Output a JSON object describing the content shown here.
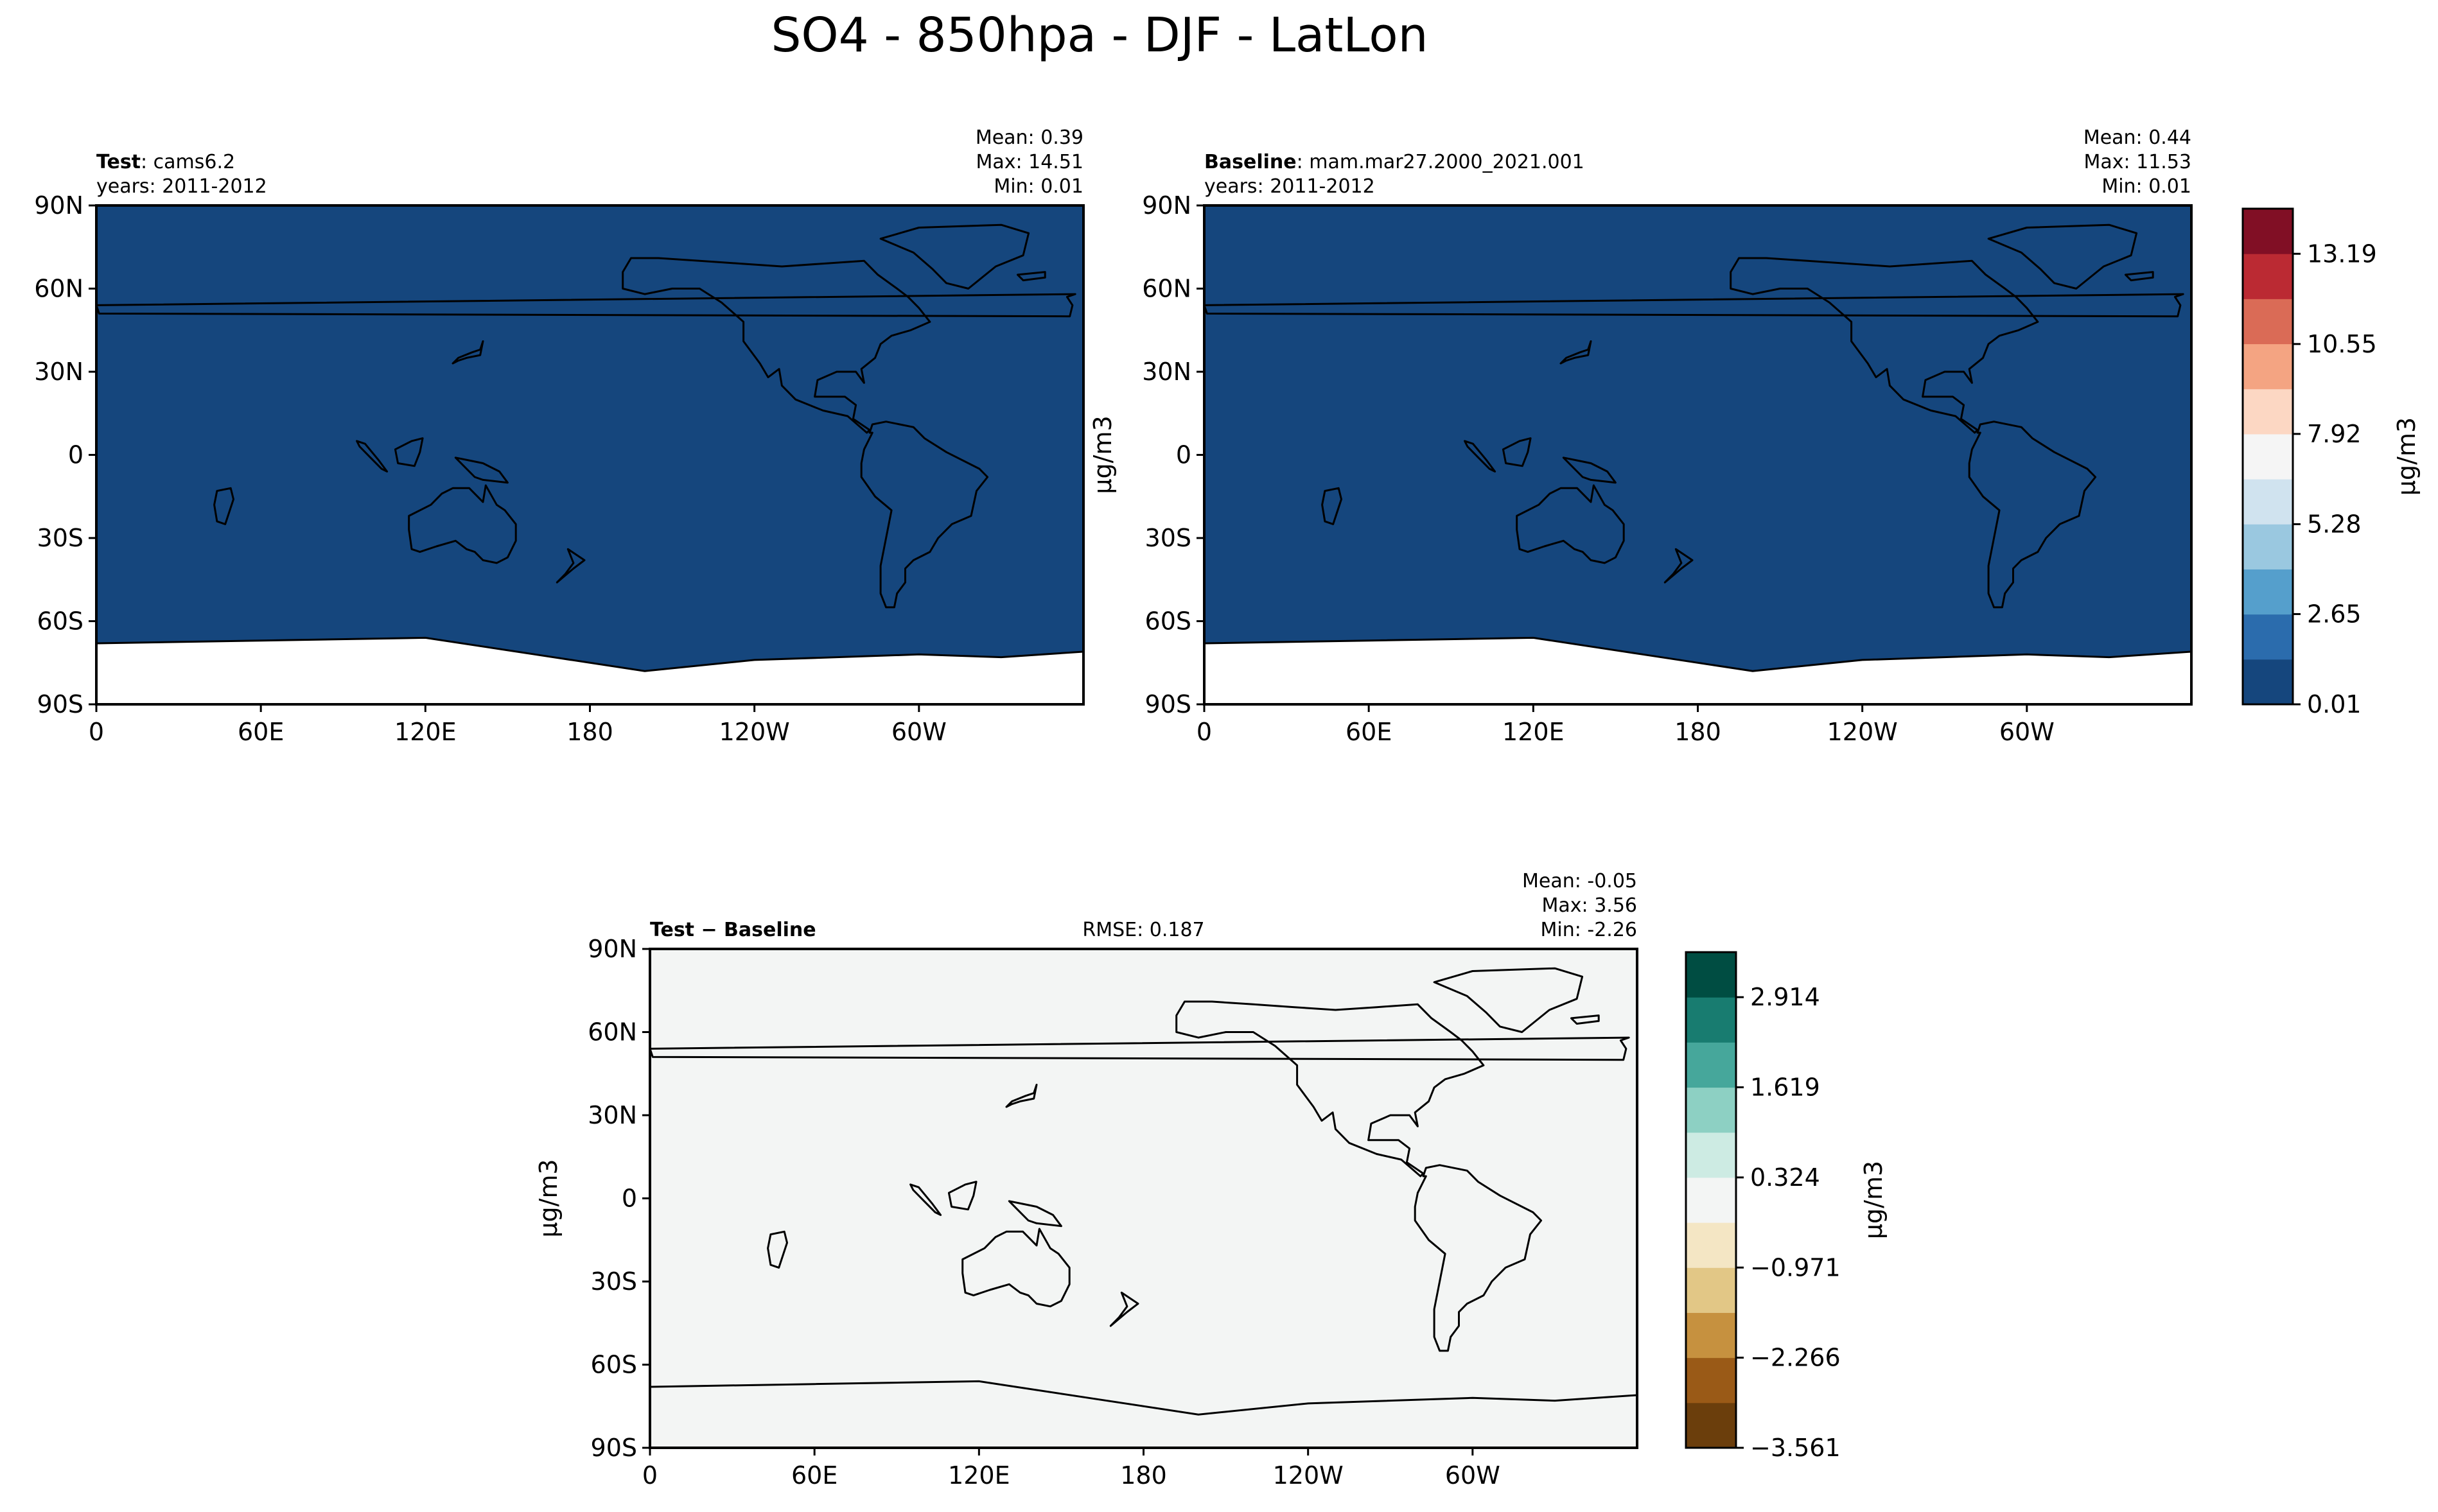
{
  "figure": {
    "title": "SO4 - 850hpa - DJF - LatLon"
  },
  "colors": {
    "ocean_test": "#15467d",
    "land": "#ffffff",
    "diff_background": "#f3f5f4",
    "coastline": "#000000"
  },
  "chart_data": [
    {
      "type": "heatmap",
      "id": "test",
      "title_bold": "Test",
      "title_rest": ": cams6.2",
      "subtitle": "years: 2011-2012",
      "stats": [
        "Mean:  0.39",
        "Max: 14.51",
        "Min:  0.01"
      ],
      "xticks": [
        "0",
        "60E",
        "120E",
        "180",
        "120W",
        "60W"
      ],
      "xtick_values": [
        0,
        60,
        120,
        180,
        240,
        300
      ],
      "yticks": [
        "90N",
        "60N",
        "30N",
        "0",
        "30S",
        "60S",
        "90S"
      ],
      "ytick_values": [
        90,
        60,
        30,
        0,
        -30,
        -60,
        -90
      ],
      "xlim": [
        0,
        360
      ],
      "ylim": [
        -90,
        90
      ],
      "units": "μg/m3",
      "mean": 0.39,
      "max": 14.51,
      "min": 0.01
    },
    {
      "type": "heatmap",
      "id": "baseline",
      "title_bold": "Baseline",
      "title_rest": ": mam.mar27.2000_2021.001",
      "subtitle": "years: 2011-2012",
      "stats": [
        "Mean:  0.44",
        "Max: 11.53",
        "Min:  0.01"
      ],
      "xticks": [
        "0",
        "60E",
        "120E",
        "180",
        "120W",
        "60W"
      ],
      "xtick_values": [
        0,
        60,
        120,
        180,
        240,
        300
      ],
      "yticks": [
        "90N",
        "60N",
        "30N",
        "0",
        "30S",
        "60S",
        "90S"
      ],
      "ytick_values": [
        90,
        60,
        30,
        0,
        -30,
        -60,
        -90
      ],
      "xlim": [
        0,
        360
      ],
      "ylim": [
        -90,
        90
      ],
      "ylabel": "μg/m3",
      "units": "μg/m3",
      "mean": 0.44,
      "max": 11.53,
      "min": 0.01
    },
    {
      "type": "heatmap",
      "id": "diff",
      "title_bold": "Test − Baseline",
      "rmse": "RMSE: 0.187",
      "stats": [
        "Mean: -0.05",
        "Max:  3.56",
        "Min: -2.26"
      ],
      "xticks": [
        "0",
        "60E",
        "120E",
        "180",
        "120W",
        "60W"
      ],
      "xtick_values": [
        0,
        60,
        120,
        180,
        240,
        300
      ],
      "yticks": [
        "90N",
        "60N",
        "30N",
        "0",
        "30S",
        "60S",
        "90S"
      ],
      "ytick_values": [
        90,
        60,
        30,
        0,
        -30,
        -60,
        -90
      ],
      "xlim": [
        0,
        360
      ],
      "ylim": [
        -90,
        90
      ],
      "ylabel": "μg/m3",
      "units": "μg/m3",
      "mean": -0.05,
      "max": 3.56,
      "min": -2.26,
      "rmse_value": 0.187
    }
  ],
  "colorbars": {
    "main": {
      "label": "μg/m3",
      "ticks": [
        "0.01",
        "2.65",
        "5.28",
        "7.92",
        "10.55",
        "13.19"
      ],
      "tick_values": [
        0.01,
        2.65,
        5.28,
        7.92,
        10.55,
        13.19
      ],
      "range": [
        0.01,
        14.51
      ],
      "colors": [
        "#15467d",
        "#2b6cad",
        "#559fcc",
        "#9ac8e0",
        "#d0e3ef",
        "#f5f5f5",
        "#fcd7c3",
        "#f4a482",
        "#da6b56",
        "#bb2a33",
        "#810f25"
      ]
    },
    "diff": {
      "label": "μg/m3",
      "ticks": [
        "−3.561",
        "−2.266",
        "−0.971",
        "0.324",
        "1.619",
        "2.914"
      ],
      "tick_values": [
        -3.561,
        -2.266,
        -0.971,
        0.324,
        1.619,
        2.914
      ],
      "range": [
        -3.561,
        3.561
      ],
      "colors": [
        "#6b3e0c",
        "#9a5a17",
        "#c6913f",
        "#e2c786",
        "#f4e6c4",
        "#f3f5f4",
        "#cdebe3",
        "#8dd0c3",
        "#46a79b",
        "#187c70",
        "#004d42"
      ]
    }
  }
}
